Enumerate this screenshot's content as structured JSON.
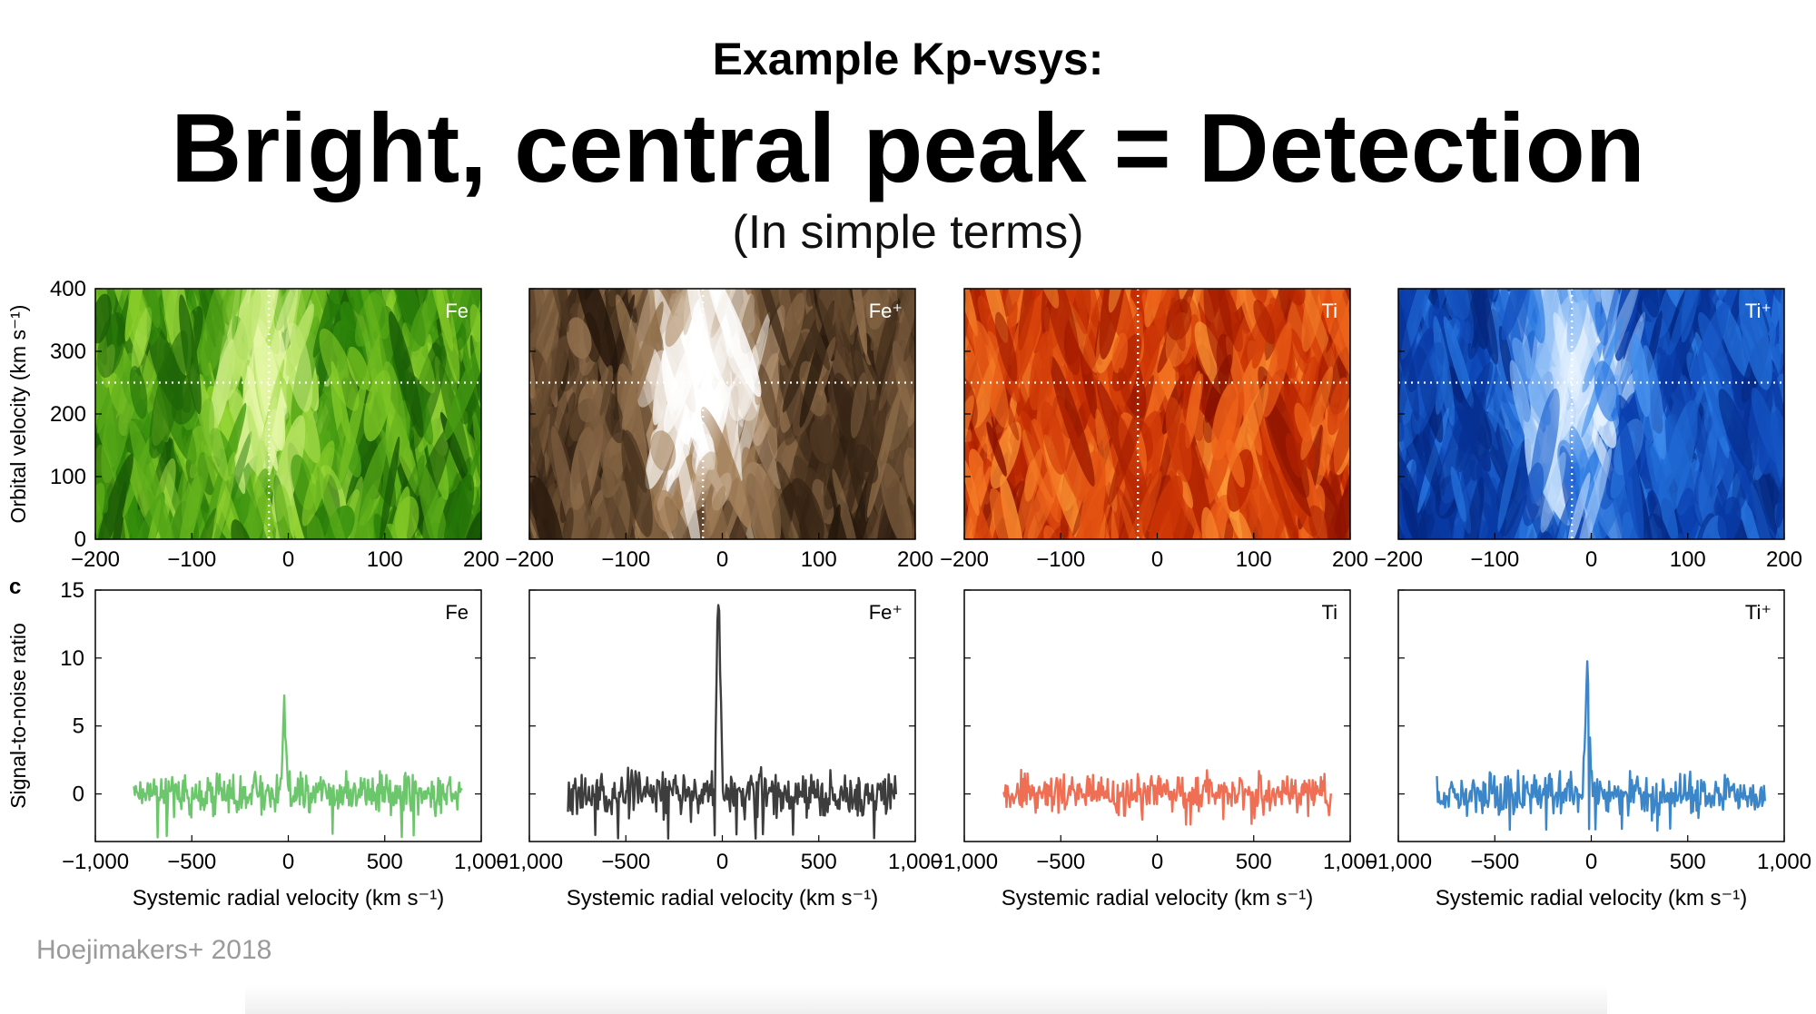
{
  "slide": {
    "subheading": "Example Kp-vsys:",
    "headline": "Bright, central peak = Detection",
    "tagline": "(In simple terms)",
    "credit": "Hoejimakers+ 2018"
  },
  "chart_data": [
    {
      "type": "heatmap",
      "panel_row": "top",
      "ylabel": "Orbital velocity (km s⁻¹)",
      "xlim": [
        -200,
        200
      ],
      "ylim": [
        0,
        400
      ],
      "xticks": [
        "−200",
        "−100",
        "0",
        "100",
        "200"
      ],
      "yticks": [
        "0",
        "100",
        "200",
        "300",
        "400"
      ],
      "crosshair": {
        "x": -20,
        "y": 250
      },
      "panels": [
        {
          "label": "Fe",
          "colormap": "green",
          "colors": [
            "#0b3a03",
            "#2e8a0a",
            "#8dd12a",
            "#e6f7a8"
          ],
          "peak": {
            "x": -20,
            "y": 250,
            "strength": 0.55
          }
        },
        {
          "label": "Fe⁺",
          "colormap": "brown",
          "colors": [
            "#1c1007",
            "#5a4028",
            "#a8845c",
            "#ffffff"
          ],
          "peak": {
            "x": -20,
            "y": 250,
            "strength": 1.0
          }
        },
        {
          "label": "Ti",
          "colormap": "orange",
          "colors": [
            "#7a0a00",
            "#c42a00",
            "#f0641a",
            "#ffb043"
          ],
          "peak": {
            "x": -20,
            "y": 250,
            "strength": 0.0
          }
        },
        {
          "label": "Ti⁺",
          "colormap": "blue",
          "colors": [
            "#001760",
            "#0a3fb0",
            "#2e82ea",
            "#e8f4ff"
          ],
          "peak": {
            "x": -20,
            "y": 250,
            "strength": 0.7
          }
        }
      ]
    },
    {
      "type": "line",
      "panel_row": "bottom",
      "panel_letter": "c",
      "ylabel": "Signal-to-noise ratio",
      "xlabel": "Systemic radial velocity (km s⁻¹)",
      "xlim": [
        -1000,
        1000
      ],
      "ylim": [
        -3.5,
        15
      ],
      "xticks": [
        "−1,000",
        "−500",
        "0",
        "500",
        "1,000"
      ],
      "yticks": [
        "0",
        "5",
        "10",
        "15"
      ],
      "x_range": [
        -800,
        900
      ],
      "series": [
        {
          "label": "Fe",
          "color": "#6cc66c",
          "peak": {
            "x": -20,
            "y": 6.3
          },
          "noise_amplitude": 1.3,
          "min": -3.2
        },
        {
          "label": "Fe⁺",
          "color": "#3d3d3d",
          "peak": {
            "x": -20,
            "y": 14.8
          },
          "noise_amplitude": 1.6,
          "min": -3.3
        },
        {
          "label": "Ti",
          "color": "#ef6f55",
          "peak": {
            "x": 0,
            "y": 0
          },
          "noise_amplitude": 1.4,
          "min": -2.5
        },
        {
          "label": "Ti⁺",
          "color": "#3b86c8",
          "peak": {
            "x": -20,
            "y": 9.2
          },
          "noise_amplitude": 1.4,
          "min": -2.7
        }
      ]
    }
  ]
}
